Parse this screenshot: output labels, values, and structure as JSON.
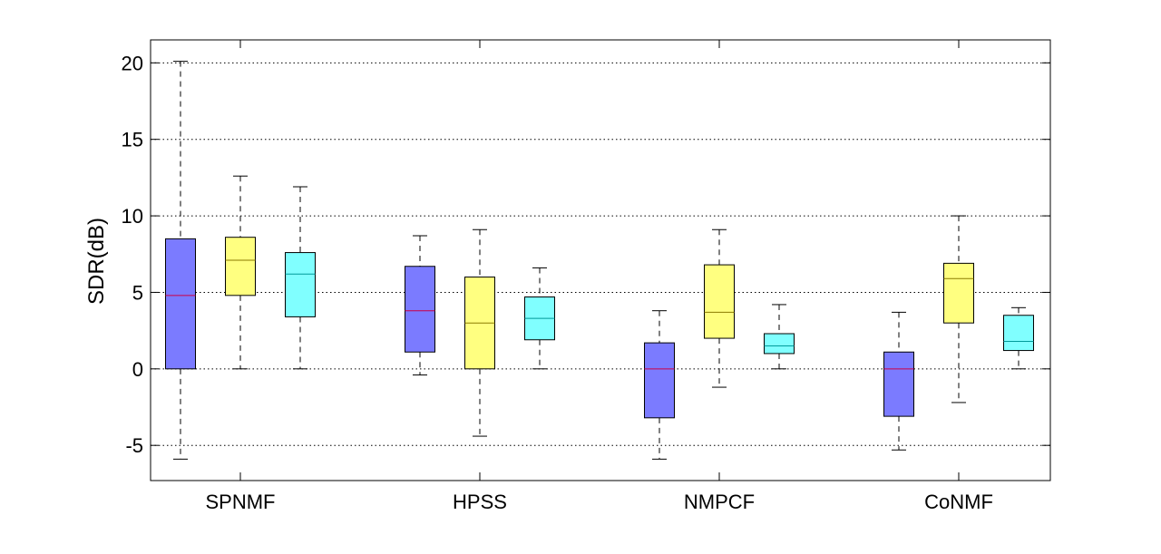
{
  "chart_data": {
    "type": "box",
    "title": "",
    "xlabel": "",
    "ylabel": "SDR(dB)",
    "ylim": [
      -7.3,
      21.5
    ],
    "yticks": [
      -5,
      0,
      5,
      10,
      15,
      20
    ],
    "ytick_labels": [
      "-5",
      "0",
      "5",
      "10",
      "15",
      "20"
    ],
    "grid": true,
    "categories": [
      "SPNMF",
      "HPSS",
      "NMPCF",
      "CoNMF"
    ],
    "series_colors": [
      "#7b7bff",
      "#ffff80",
      "#80ffff"
    ],
    "median_colors": [
      "#cc0044",
      "#8a7a00",
      "#009999"
    ],
    "groups": [
      {
        "category": "SPNMF",
        "boxes": [
          {
            "min": -5.9,
            "q1": 0.0,
            "median": 4.8,
            "q3": 8.5,
            "max": 20.1
          },
          {
            "min": 0.0,
            "q1": 4.8,
            "median": 7.1,
            "q3": 8.6,
            "max": 12.6
          },
          {
            "min": 0.0,
            "q1": 3.4,
            "median": 6.2,
            "q3": 7.6,
            "max": 11.9
          }
        ]
      },
      {
        "category": "HPSS",
        "boxes": [
          {
            "min": -0.4,
            "q1": 1.1,
            "median": 3.8,
            "q3": 6.7,
            "max": 8.7
          },
          {
            "min": -4.4,
            "q1": 0.0,
            "median": 3.0,
            "q3": 6.0,
            "max": 9.1
          },
          {
            "min": 0.0,
            "q1": 1.9,
            "median": 3.3,
            "q3": 4.7,
            "max": 6.6
          }
        ]
      },
      {
        "category": "NMPCF",
        "boxes": [
          {
            "min": -5.9,
            "q1": -3.2,
            "median": 0.0,
            "q3": 1.7,
            "max": 3.8
          },
          {
            "min": -1.2,
            "q1": 2.0,
            "median": 3.7,
            "q3": 6.8,
            "max": 9.1
          },
          {
            "min": 0.0,
            "q1": 1.0,
            "median": 1.5,
            "q3": 2.3,
            "max": 4.2
          }
        ]
      },
      {
        "category": "CoNMF",
        "boxes": [
          {
            "min": -5.3,
            "q1": -3.1,
            "median": 0.0,
            "q3": 1.1,
            "max": 3.7
          },
          {
            "min": -2.2,
            "q1": 3.0,
            "median": 5.9,
            "q3": 6.9,
            "max": 10.0
          },
          {
            "min": 0.0,
            "q1": 1.2,
            "median": 1.8,
            "q3": 3.5,
            "max": 4.0
          }
        ]
      }
    ]
  }
}
